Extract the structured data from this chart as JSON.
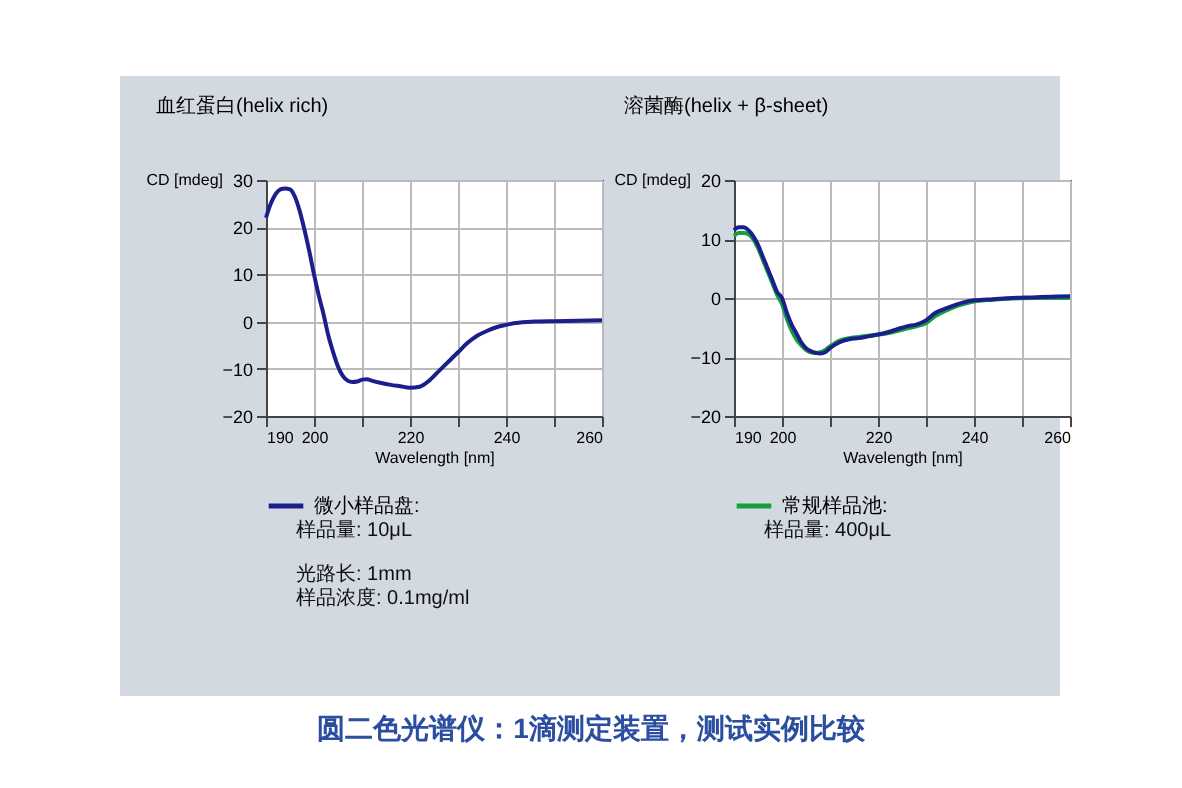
{
  "chart_data": [
    {
      "type": "line",
      "title": "血红蛋白(helix   rich)",
      "xlabel": "Wavelength [nm]",
      "ylabel": "CD [mdeg]",
      "xlim": [
        190,
        260
      ],
      "ylim": [
        -20,
        30
      ],
      "xticks": [
        190,
        200,
        {
          "value": 210,
          "label": null
        },
        220,
        {
          "value": 230,
          "label": null
        },
        240,
        {
          "value": 250,
          "label": null
        },
        260
      ],
      "yticks": [
        -20,
        -10,
        0,
        10,
        20,
        30
      ],
      "grid": true,
      "legend": "bottom",
      "line_style": "solid",
      "x": [
        190,
        191,
        192,
        193,
        194,
        195,
        196,
        197,
        198,
        199,
        200,
        201,
        202,
        203,
        204,
        205,
        206,
        207,
        208,
        209,
        210,
        211,
        212,
        214,
        216,
        218,
        220,
        222,
        224,
        226,
        228,
        230,
        232,
        234,
        236,
        238,
        240,
        242,
        246,
        250,
        260
      ],
      "series": [
        {
          "name": "微小样品盘:",
          "color": "#1a1f8c",
          "values": [
            22,
            25,
            27,
            28,
            28.2,
            28,
            26.5,
            23.5,
            19.5,
            15,
            10,
            5.5,
            1.5,
            -3,
            -6.5,
            -9.5,
            -11.5,
            -12.5,
            -12.8,
            -12.7,
            -12.3,
            -12.2,
            -12.5,
            -13,
            -13.4,
            -13.7,
            -14,
            -13.8,
            -12.5,
            -10.5,
            -8.5,
            -6.5,
            -4.5,
            -3,
            -2,
            -1.2,
            -0.7,
            -0.3,
            0,
            0.1,
            0.3
          ]
        }
      ],
      "annotations": [
        "样品量: 10μL",
        "光路长: 1mm",
        "样品浓度: 0.1mg/ml",
        "圆二色光谱仪：1滴测定装置，测试实例比较"
      ]
    },
    {
      "type": "line",
      "title": "溶菌酶(helix  + β-sheet)",
      "xlabel": "Wavelength [nm]",
      "ylabel": "CD [mdeg]",
      "xlim": [
        190,
        260
      ],
      "ylim": [
        -20,
        20
      ],
      "xticks": [
        190,
        200,
        {
          "value": 210,
          "label": null
        },
        220,
        {
          "value": 230,
          "label": null
        },
        240,
        {
          "value": 250,
          "label": null
        },
        260
      ],
      "yticks": [
        -20,
        -10,
        0,
        10,
        20
      ],
      "grid": true,
      "legend": "bottom",
      "line_style": "solid",
      "x": [
        190,
        191,
        192,
        193,
        194,
        195,
        196,
        197,
        198,
        199,
        200,
        201,
        202,
        203,
        204,
        205,
        206,
        207,
        208,
        209,
        210,
        212,
        214,
        216,
        218,
        220,
        222,
        224,
        226,
        228,
        230,
        232,
        234,
        236,
        238,
        240,
        244,
        248,
        252,
        256,
        260
      ],
      "series": [
        {
          "name": "常规样品池:",
          "color": "#16a03c",
          "values": [
            10.5,
            11,
            11,
            10.8,
            10,
            8.5,
            6.5,
            4.5,
            2.5,
            0.5,
            -1,
            -3.5,
            -5.5,
            -7,
            -8,
            -8.8,
            -9.2,
            -9.3,
            -9.2,
            -8.8,
            -8.2,
            -7.2,
            -6.8,
            -6.6,
            -6.4,
            -6.2,
            -6,
            -5.6,
            -5.2,
            -4.8,
            -4.3,
            -3,
            -2.2,
            -1.5,
            -1,
            -0.6,
            -0.3,
            -0.1,
            0,
            0,
            0
          ]
        },
        {
          "color": "#1a1f8c",
          "values": [
            11.5,
            12,
            12,
            11.5,
            10.5,
            9,
            7,
            5,
            3,
            1,
            0,
            -2.5,
            -4.5,
            -6,
            -7.5,
            -8.5,
            -9,
            -9.3,
            -9.4,
            -9.2,
            -8.5,
            -7.5,
            -7,
            -6.8,
            -6.5,
            -6.2,
            -5.8,
            -5.3,
            -4.8,
            -4.5,
            -3.8,
            -2.5,
            -1.8,
            -1.2,
            -0.7,
            -0.4,
            -0.2,
            0,
            0.1,
            0.2,
            0.3
          ]
        }
      ],
      "annotations": [
        "样品量: 400μL"
      ]
    }
  ]
}
